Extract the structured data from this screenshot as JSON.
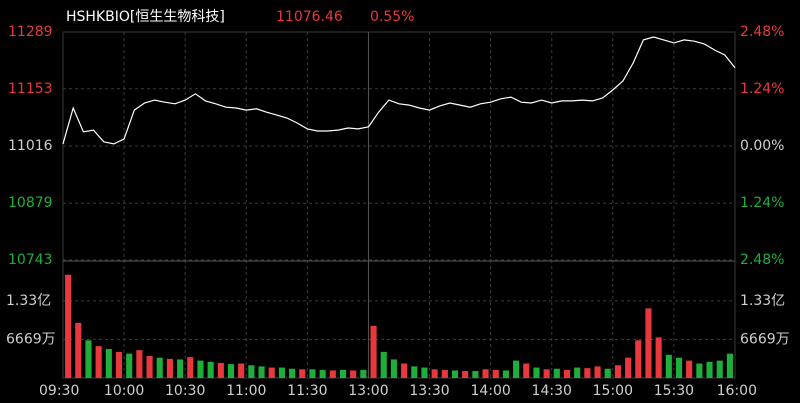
{
  "chart_data": [
    {
      "type": "line",
      "title": "HSHKBIO[恒生生物科技]",
      "annotations": [
        "11076.46",
        "0.55%"
      ],
      "x": [
        0,
        5,
        10,
        15,
        20,
        25,
        30,
        35,
        40,
        45,
        50,
        55,
        60,
        65,
        70,
        75,
        80,
        85,
        90,
        95,
        100,
        105,
        110,
        115,
        120,
        125,
        130,
        135,
        140,
        145,
        150,
        155,
        160,
        165,
        170,
        175,
        180,
        185,
        190,
        195,
        200,
        205,
        210,
        215,
        220,
        225,
        230,
        235,
        240,
        245,
        250,
        255,
        260,
        265,
        270,
        275,
        280,
        285,
        290,
        295,
        300,
        305,
        310,
        315,
        320,
        325,
        330
      ],
      "series": [
        {
          "name": "HSHKBIO",
          "color": "#ffffff",
          "values": [
            11021,
            11107,
            11050,
            11054,
            11026,
            11021,
            11033,
            11102,
            11119,
            11126,
            11121,
            11117,
            11126,
            11141,
            11124,
            11117,
            11109,
            11107,
            11102,
            11105,
            11097,
            11090,
            11083,
            11071,
            11057,
            11052,
            11052,
            11054,
            11059,
            11057,
            11062,
            11097,
            11126,
            11117,
            11114,
            11107,
            11102,
            11112,
            11119,
            11114,
            11109,
            11117,
            11121,
            11129,
            11133,
            11121,
            11119,
            11126,
            11119,
            11124,
            11124,
            11126,
            11124,
            11131,
            11150,
            11172,
            11215,
            11270,
            11277,
            11270,
            11263,
            11270,
            11267,
            11260,
            11246,
            11234,
            11203
          ]
        }
      ],
      "xlim": [
        0,
        330
      ],
      "xticks": [
        {
          "value": 0,
          "label": "09:30"
        },
        {
          "value": 30,
          "label": "10:00"
        },
        {
          "value": 60,
          "label": "10:30"
        },
        {
          "value": 90,
          "label": "11:00"
        },
        {
          "value": 120,
          "label": "11:30"
        },
        {
          "value": 150,
          "label": "13:00"
        },
        {
          "value": 180,
          "label": "13:30"
        },
        {
          "value": 210,
          "label": "14:00"
        },
        {
          "value": 240,
          "label": "14:30"
        },
        {
          "value": 270,
          "label": "15:00"
        },
        {
          "value": 300,
          "label": "15:30"
        },
        {
          "value": 330,
          "label": "16:00"
        }
      ],
      "ylim": [
        10743,
        11289
      ],
      "yticks": [
        11289,
        11153,
        11016,
        10879,
        10743
      ],
      "y2lim": [
        -2.48,
        2.48
      ],
      "y2ticks": [
        {
          "value": 2.48,
          "label": "2.48%"
        },
        {
          "value": 1.24,
          "label": "1.24%"
        },
        {
          "value": 0,
          "label": "0.00%"
        },
        {
          "value": -1.24,
          "label": "1.24%"
        },
        {
          "value": -2.48,
          "label": "2.48%"
        }
      ],
      "grid": true
    },
    {
      "type": "bar",
      "x": [
        0,
        5,
        10,
        15,
        20,
        25,
        30,
        35,
        40,
        45,
        50,
        55,
        60,
        65,
        70,
        75,
        80,
        85,
        90,
        95,
        100,
        105,
        110,
        115,
        120,
        125,
        130,
        135,
        140,
        145,
        150,
        155,
        160,
        165,
        170,
        175,
        180,
        185,
        190,
        195,
        200,
        205,
        210,
        215,
        220,
        225,
        230,
        235,
        240,
        245,
        250,
        255,
        260,
        265,
        270,
        275,
        280,
        285,
        290,
        295,
        300,
        305,
        310,
        315,
        320,
        325
      ],
      "values": [
        17800,
        9500,
        6500,
        5500,
        5000,
        4500,
        4200,
        4800,
        3800,
        3500,
        3300,
        3200,
        3600,
        3000,
        2800,
        2600,
        2400,
        2500,
        2200,
        2000,
        1800,
        1800,
        1600,
        1500,
        1500,
        1400,
        1300,
        1400,
        1300,
        1400,
        9000,
        4500,
        3200,
        2500,
        2000,
        1800,
        1500,
        1400,
        1300,
        1200,
        1200,
        1500,
        1400,
        1300,
        3000,
        2500,
        1800,
        1500,
        1600,
        1400,
        1800,
        1700,
        2000,
        1600,
        2200,
        3500,
        6500,
        12000,
        7000,
        4000,
        3500,
        3000,
        2500,
        2800,
        3000,
        4200
      ],
      "colors": [
        "#e8383d",
        "#e8383d",
        "#1fae3c",
        "#e8383d",
        "#1fae3c",
        "#e8383d",
        "#1fae3c",
        "#e8383d",
        "#e8383d",
        "#1fae3c",
        "#e8383d",
        "#1fae3c",
        "#e8383d",
        "#1fae3c",
        "#1fae3c",
        "#e8383d",
        "#1fae3c",
        "#e8383d",
        "#1fae3c",
        "#1fae3c",
        "#e8383d",
        "#1fae3c",
        "#1fae3c",
        "#e8383d",
        "#1fae3c",
        "#1fae3c",
        "#e8383d",
        "#1fae3c",
        "#e8383d",
        "#1fae3c",
        "#e8383d",
        "#1fae3c",
        "#1fae3c",
        "#e8383d",
        "#1fae3c",
        "#1fae3c",
        "#e8383d",
        "#e8383d",
        "#1fae3c",
        "#e8383d",
        "#1fae3c",
        "#e8383d",
        "#e8383d",
        "#1fae3c",
        "#1fae3c",
        "#e8383d",
        "#1fae3c",
        "#e8383d",
        "#1fae3c",
        "#e8383d",
        "#1fae3c",
        "#e8383d",
        "#e8383d",
        "#1fae3c",
        "#e8383d",
        "#e8383d",
        "#e8383d",
        "#e8383d",
        "#e8383d",
        "#1fae3c",
        "#1fae3c",
        "#e8383d",
        "#1fae3c",
        "#1fae3c",
        "#1fae3c",
        "#1fae3c"
      ],
      "xlim": [
        0,
        330
      ],
      "ylim": [
        0,
        20000
      ],
      "yticks": [
        {
          "value": 13300,
          "label": "1.33亿"
        },
        {
          "value": 6669,
          "label": "6669万"
        }
      ],
      "grid": true
    }
  ]
}
